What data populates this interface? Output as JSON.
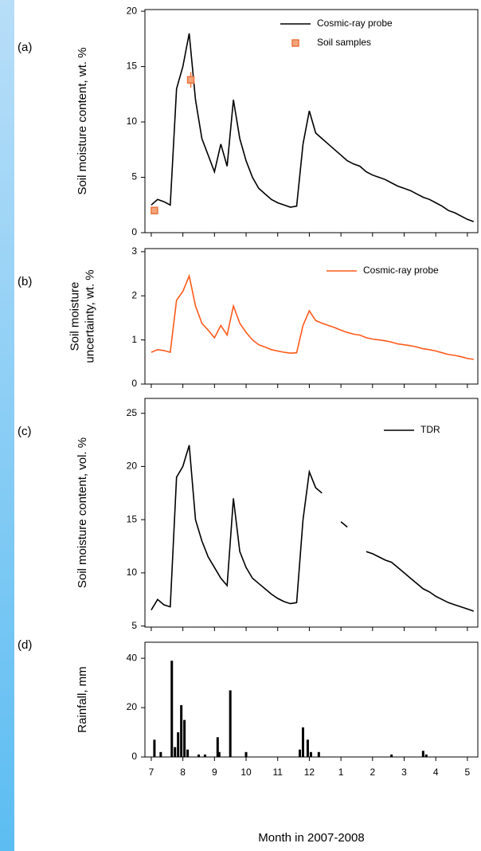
{
  "chart_data": [
    {
      "type": "line",
      "panel_label": "(a)",
      "ylabel": [
        "Soil moisture content, wt. %"
      ],
      "x": [
        7,
        7.2,
        7.4,
        7.6,
        7.8,
        8,
        8.2,
        8.4,
        8.6,
        8.8,
        9,
        9.2,
        9.4,
        9.6,
        9.8,
        10,
        10.2,
        10.4,
        10.6,
        10.8,
        11,
        11.2,
        11.4,
        11.6,
        11.8,
        12,
        12.2,
        12.4,
        12.6,
        12.8,
        13,
        13.2,
        13.4,
        13.6,
        13.8,
        14,
        14.2,
        14.4,
        14.6,
        14.8,
        15,
        15.2,
        15.4,
        15.6,
        15.8,
        16,
        16.2,
        16.4,
        16.6,
        16.8,
        17,
        17.2
      ],
      "xlim": [
        6.8,
        17.33
      ],
      "ylim": [
        0,
        20.15
      ],
      "yticks": [
        0,
        5,
        10,
        15,
        20
      ],
      "legend": "upper right",
      "series": [
        {
          "name": "Cosmic-ray probe",
          "color": "#000000",
          "values": [
            2.5,
            3,
            2.8,
            2.5,
            13,
            15,
            18,
            12,
            8.5,
            7,
            5.5,
            8,
            6,
            12,
            8.5,
            6.5,
            5,
            4,
            3.5,
            3,
            2.7,
            2.5,
            2.3,
            2.4,
            8,
            11,
            9,
            8.5,
            8,
            7.5,
            7,
            6.5,
            6.2,
            6,
            5.5,
            5.2,
            5,
            4.8,
            4.5,
            4.2,
            4,
            3.8,
            3.5,
            3.2,
            3,
            2.7,
            2.4,
            2,
            1.8,
            1.5,
            1.2,
            1
          ]
        }
      ],
      "samples": {
        "name": "Soil samples",
        "color": "#e8743b",
        "x": [
          7.1,
          8.25
        ],
        "values": [
          2,
          13.8
        ],
        "errors": [
          0.2,
          0.7
        ]
      }
    },
    {
      "type": "line",
      "panel_label": "(b)",
      "ylabel": [
        "Soil moisture",
        "uncertainty, wt. %"
      ],
      "x": [
        7,
        7.2,
        7.4,
        7.6,
        7.8,
        8,
        8.2,
        8.4,
        8.6,
        8.8,
        9,
        9.2,
        9.4,
        9.6,
        9.8,
        10,
        10.2,
        10.4,
        10.6,
        10.8,
        11,
        11.2,
        11.4,
        11.6,
        11.8,
        12,
        12.2,
        12.4,
        12.6,
        12.8,
        13,
        13.2,
        13.4,
        13.6,
        13.8,
        14,
        14.2,
        14.4,
        14.6,
        14.8,
        15,
        15.2,
        15.4,
        15.6,
        15.8,
        16,
        16.2,
        16.4,
        16.6,
        16.8,
        17,
        17.2
      ],
      "xlim": [
        6.8,
        17.33
      ],
      "ylim": [
        0,
        3.07
      ],
      "yticks": [
        0,
        1,
        2,
        3
      ],
      "legend": "upper right",
      "series": [
        {
          "name": "Cosmic-ray probe",
          "color": "#ff5a1a",
          "values": [
            0.72,
            0.78,
            0.76,
            0.72,
            1.9,
            2.1,
            2.45,
            1.77,
            1.38,
            1.22,
            1.05,
            1.33,
            1.11,
            1.77,
            1.38,
            1.17,
            1,
            0.89,
            0.84,
            0.78,
            0.75,
            0.72,
            0.7,
            0.71,
            1.33,
            1.66,
            1.44,
            1.38,
            1.33,
            1.28,
            1.22,
            1.17,
            1.13,
            1.11,
            1.05,
            1.02,
            1,
            0.98,
            0.95,
            0.91,
            0.89,
            0.87,
            0.84,
            0.8,
            0.78,
            0.75,
            0.71,
            0.67,
            0.65,
            0.62,
            0.58,
            0.56
          ]
        }
      ]
    },
    {
      "type": "line",
      "panel_label": "(c)",
      "ylabel": [
        "Soil moisture content, vol. %"
      ],
      "x": [
        7,
        7.2,
        7.4,
        7.6,
        7.8,
        8,
        8.2,
        8.4,
        8.6,
        8.8,
        9,
        9.2,
        9.4,
        9.6,
        9.8,
        10,
        10.2,
        10.4,
        10.6,
        10.8,
        11,
        11.2,
        11.4,
        11.6,
        11.8,
        12,
        12.2,
        12.4,
        12.6,
        12.8,
        13,
        13.2,
        13.4,
        13.6,
        13.8,
        14,
        14.2,
        14.4,
        14.6,
        14.8,
        15,
        15.2,
        15.4,
        15.6,
        15.8,
        16,
        16.2,
        16.4,
        16.6,
        16.8,
        17,
        17.2
      ],
      "xlim": [
        6.8,
        17.33
      ],
      "ylim": [
        4.9,
        26.4
      ],
      "yticks": [
        5,
        10,
        15,
        20,
        25
      ],
      "legend": "upper right",
      "series": [
        {
          "name": "TDR",
          "color": "#000000",
          "values": [
            6.5,
            7.5,
            7,
            6.8,
            19,
            20,
            22,
            15,
            13,
            11.5,
            10.5,
            9.5,
            8.8,
            17,
            12,
            10.5,
            9.5,
            9,
            8.5,
            8,
            7.6,
            7.3,
            7.1,
            7.2,
            15,
            19.5,
            18,
            17.5,
            null,
            null,
            14.8,
            14.3,
            null,
            null,
            12,
            11.8,
            11.5,
            11.2,
            11,
            10.5,
            10,
            9.5,
            9,
            8.5,
            8.2,
            7.8,
            7.5,
            7.2,
            7,
            6.8,
            6.6,
            6.4
          ]
        }
      ]
    },
    {
      "type": "bar",
      "panel_label": "(d)",
      "ylabel": [
        "Rainfall, mm"
      ],
      "xlabel": "Month in 2007-2008",
      "x": [
        7.1,
        7.3,
        7.65,
        7.75,
        7.85,
        7.95,
        8.05,
        8.15,
        8.5,
        8.7,
        9.1,
        9.15,
        9.5,
        10,
        11.7,
        11.8,
        11.95,
        12.05,
        12.3,
        14.6,
        15.6,
        15.7
      ],
      "values": [
        7,
        2,
        39,
        4,
        10,
        21,
        15,
        3,
        1,
        1,
        8,
        2,
        27,
        2,
        3,
        12,
        7,
        2,
        2,
        1,
        2.5,
        1
      ],
      "color": "#000000",
      "xlim": [
        6.8,
        17.33
      ],
      "ylim": [
        0,
        46.5
      ],
      "yticks": [
        0,
        20,
        40
      ],
      "xticks": [
        7,
        8,
        9,
        10,
        11,
        12,
        {
          "value": 13,
          "label": "1"
        },
        {
          "value": 14,
          "label": "2"
        },
        {
          "value": 15,
          "label": "3"
        },
        {
          "value": 16,
          "label": "4"
        },
        {
          "value": 17,
          "label": "5"
        }
      ]
    }
  ]
}
